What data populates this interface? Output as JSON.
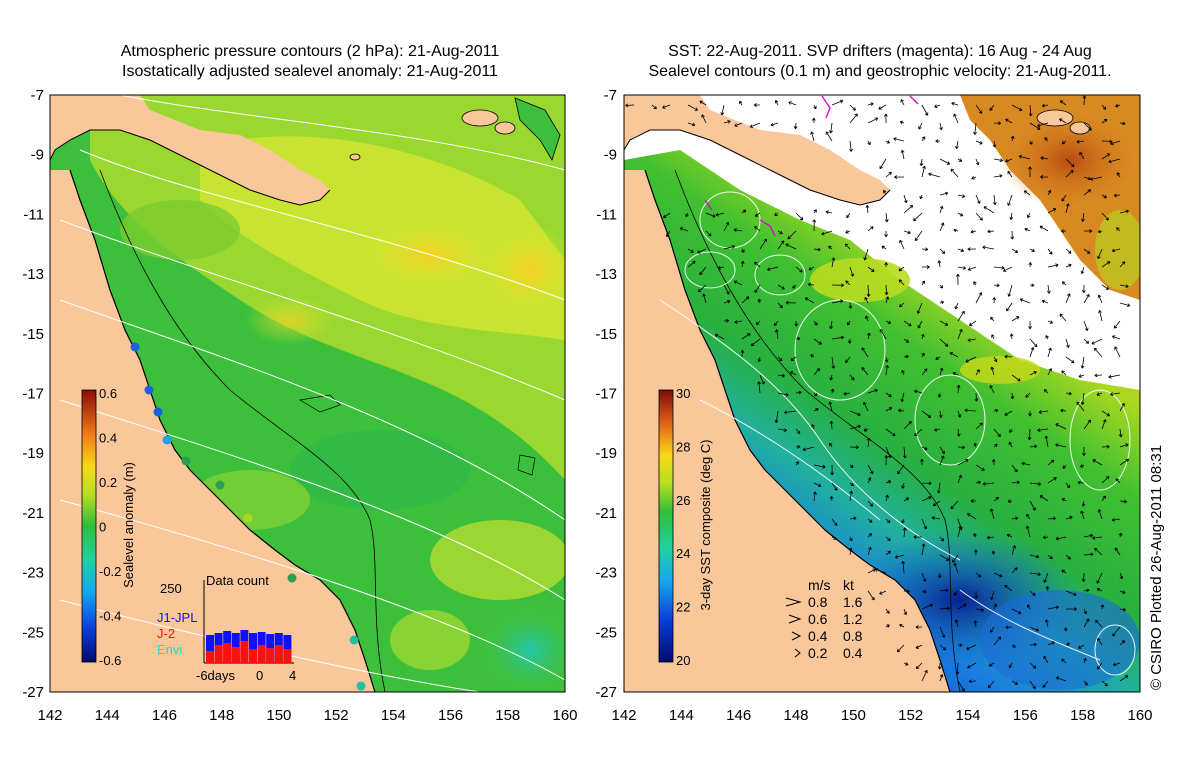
{
  "left_panel": {
    "title_line1": "Atmospheric pressure contours (2 hPa): 21-Aug-2011",
    "title_line2": "Isostatically adjusted sealevel anomaly: 21-Aug-2011",
    "colorbar": {
      "label": "Sealevel anomaly (m)",
      "ticks": [
        "0.6",
        "0.4",
        "0.2",
        "0",
        "-0.2",
        "-0.4",
        "-0.6"
      ]
    },
    "data_count": {
      "max_label": "250",
      "title": "Data count",
      "missions": [
        {
          "name": "J1-JPL",
          "color": "#1010ff"
        },
        {
          "name": "J-2",
          "color": "#ff1010"
        },
        {
          "name": "Envi",
          "color": "#10e0e0"
        }
      ],
      "x_labels": [
        "-6days",
        "0",
        "4"
      ]
    }
  },
  "right_panel": {
    "title_line1": "SST: 22-Aug-2011. SVP drifters (magenta): 16 Aug - 24 Aug",
    "title_line2": "Sealevel contours (0.1 m) and geostrophic velocity: 21-Aug-2011.",
    "colorbar": {
      "label": "3-day SST composite (deg C)",
      "ticks": [
        "30",
        "28",
        "26",
        "24",
        "22",
        "20"
      ]
    },
    "velocity_legend": {
      "header_ms": "m/s",
      "header_kt": "kt",
      "rows": [
        {
          "ms": "0.8",
          "kt": "1.6"
        },
        {
          "ms": "0.6",
          "kt": "1.2"
        },
        {
          "ms": "0.4",
          "kt": "0.8"
        },
        {
          "ms": "0.2",
          "kt": "0.4"
        }
      ]
    }
  },
  "axes": {
    "lat_labels": [
      "-7",
      "-9",
      "-11",
      "-13",
      "-15",
      "-17",
      "-19",
      "-21",
      "-23",
      "-25",
      "-27"
    ],
    "lon_labels": [
      "142",
      "144",
      "146",
      "148",
      "150",
      "152",
      "154",
      "156",
      "158",
      "160"
    ]
  },
  "credit": "© CSIRO Plotted 26-Aug-2011 08:31",
  "colors": {
    "land": "#f9c79a",
    "white_contour": "#ffffff",
    "coast": "#000000"
  }
}
